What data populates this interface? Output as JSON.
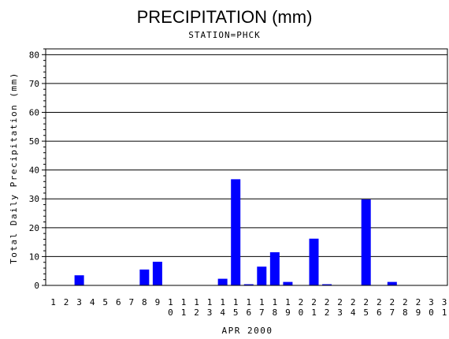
{
  "chart_data": {
    "type": "bar",
    "title": "PRECIPITATION (mm)",
    "subtitle": "STATION=PHCK",
    "xlabel": "APR 2000",
    "ylabel": "Total Daily Precipitation (mm)",
    "ylim": [
      0,
      82
    ],
    "yticks": [
      0,
      10,
      20,
      30,
      40,
      50,
      60,
      70,
      80
    ],
    "grid": true,
    "bar_color": "#0000ff",
    "categories": [
      "1",
      "2",
      "3",
      "4",
      "5",
      "6",
      "7",
      "8",
      "9",
      "10",
      "11",
      "12",
      "13",
      "14",
      "15",
      "16",
      "17",
      "18",
      "19",
      "20",
      "21",
      "22",
      "23",
      "24",
      "25",
      "26",
      "27",
      "28",
      "29",
      "30",
      "31"
    ],
    "values": [
      0,
      0,
      3.5,
      0,
      0,
      0,
      0,
      5.5,
      8.2,
      0,
      0,
      0,
      0,
      2.3,
      36.8,
      0.4,
      6.5,
      11.5,
      1.2,
      0,
      16.2,
      0.4,
      0,
      0,
      29.8,
      0,
      1.2,
      0,
      0,
      0,
      0
    ]
  }
}
